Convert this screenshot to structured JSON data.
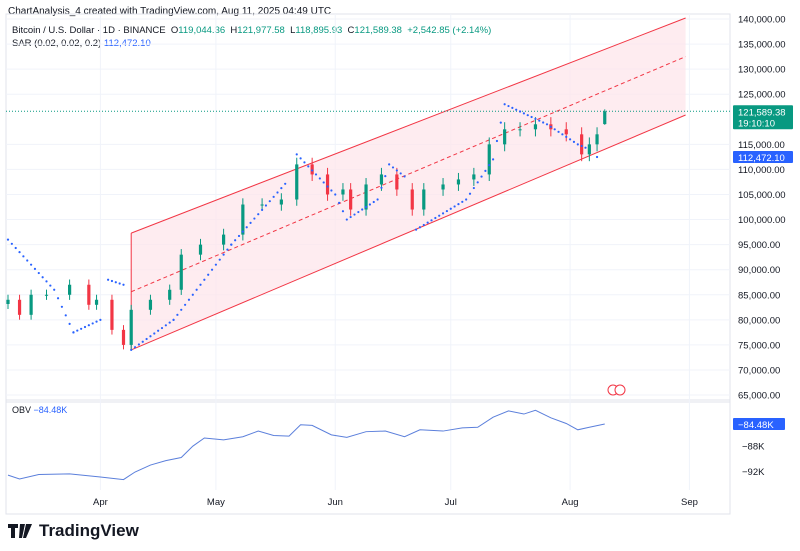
{
  "header": {
    "credit": "ChartAnalysis_4 created with TradingView.com, Aug 11, 2025 04:49 UTC",
    "symbol": "Bitcoin / U.S. Dollar · 1D · BINANCE",
    "o_label": "O",
    "open": "119,044.36",
    "h_label": "H",
    "high": "121,977.58",
    "l_label": "L",
    "low": "118,895.93",
    "c_label": "C",
    "close": "121,589.38",
    "change": "+2,542.85 (+2.14%)",
    "sar_label": "SAR (0.02, 0.02, 0.2)",
    "sar_value": "112,472.10"
  },
  "price_tag": {
    "price": "121,589.38",
    "countdown": "19:10:10",
    "sar": "112,472.10"
  },
  "obv": {
    "label": "OBV",
    "value": "−84.48K"
  },
  "brand": "TradingView",
  "colors": {
    "up": "#089981",
    "down": "#f23645",
    "sar": "#2962ff",
    "channel": "#f23645",
    "channel_fill": "#fde4ea",
    "obv": "#5b7fdb"
  },
  "chart_data": [
    {
      "type": "candlestick",
      "title": "Bitcoin / U.S. Dollar · 1D · BINANCE",
      "ylim": [
        65000,
        140000
      ],
      "y_ticks": [
        "140,000.00",
        "135,000.00",
        "130,000.00",
        "125,000.00",
        "115,000.00",
        "110,000.00",
        "105,000.00",
        "100,000.00",
        "95,000.00",
        "90,000.00",
        "85,000.00",
        "80,000.00",
        "75,000.00",
        "70,000.00",
        "65,000.00"
      ],
      "y_tick_values": [
        140000,
        135000,
        130000,
        125000,
        115000,
        110000,
        105000,
        100000,
        95000,
        90000,
        85000,
        80000,
        75000,
        70000,
        65000
      ],
      "x_ticks": [
        "Apr",
        "May",
        "Jun",
        "Jul",
        "Aug",
        "Sep"
      ],
      "x_tick_dates": [
        "2025-04-01",
        "2025-05-01",
        "2025-06-01",
        "2025-07-01",
        "2025-08-01",
        "2025-09-01"
      ],
      "closes": [
        [
          "2025-03-08",
          84000
        ],
        [
          "2025-03-11",
          81000
        ],
        [
          "2025-03-14",
          85000
        ],
        [
          "2025-03-18",
          85000
        ],
        [
          "2025-03-24",
          87000
        ],
        [
          "2025-03-29",
          83000
        ],
        [
          "2025-03-31",
          84000
        ],
        [
          "2025-04-04",
          78000
        ],
        [
          "2025-04-07",
          75000
        ],
        [
          "2025-04-09",
          82000
        ],
        [
          "2025-04-14",
          84000
        ],
        [
          "2025-04-19",
          86000
        ],
        [
          "2025-04-22",
          93000
        ],
        [
          "2025-04-27",
          95000
        ],
        [
          "2025-05-03",
          97000
        ],
        [
          "2025-05-08",
          103000
        ],
        [
          "2025-05-13",
          103000
        ],
        [
          "2025-05-18",
          104000
        ],
        [
          "2025-05-22",
          111000
        ],
        [
          "2025-05-26",
          109000
        ],
        [
          "2025-05-30",
          105000
        ],
        [
          "2025-06-03",
          106000
        ],
        [
          "2025-06-05",
          102000
        ],
        [
          "2025-06-09",
          107000
        ],
        [
          "2025-06-13",
          109000
        ],
        [
          "2025-06-17",
          106000
        ],
        [
          "2025-06-21",
          102000
        ],
        [
          "2025-06-24",
          106000
        ],
        [
          "2025-06-29",
          107000
        ],
        [
          "2025-07-03",
          108000
        ],
        [
          "2025-07-07",
          109000
        ],
        [
          "2025-07-11",
          115000
        ],
        [
          "2025-07-15",
          118000
        ],
        [
          "2025-07-19",
          118000
        ],
        [
          "2025-07-23",
          119000
        ],
        [
          "2025-07-27",
          118000
        ],
        [
          "2025-07-31",
          117000
        ],
        [
          "2025-08-04",
          113000
        ],
        [
          "2025-08-06",
          115000
        ],
        [
          "2025-08-08",
          117000
        ],
        [
          "2025-08-10",
          121589.38
        ]
      ],
      "last_candle": {
        "open": 119044.36,
        "high": 121977.58,
        "low": 118895.93,
        "close": 121589.38
      },
      "sar": [
        [
          "2025-03-08",
          96000
        ],
        [
          "2025-03-20",
          86000
        ],
        [
          "2025-03-25",
          77500
        ],
        [
          "2025-04-01",
          80000
        ],
        [
          "2025-04-03",
          88000
        ],
        [
          "2025-04-07",
          87000
        ],
        [
          "2025-04-09",
          74000
        ],
        [
          "2025-04-20",
          80000
        ],
        [
          "2025-05-05",
          95000
        ],
        [
          "2025-05-20",
          108000
        ],
        [
          "2025-05-22",
          113000
        ],
        [
          "2025-06-01",
          105000
        ],
        [
          "2025-06-04",
          100000
        ],
        [
          "2025-06-12",
          104000
        ],
        [
          "2025-06-15",
          111000
        ],
        [
          "2025-06-20",
          108000
        ],
        [
          "2025-06-22",
          98000
        ],
        [
          "2025-07-05",
          104000
        ],
        [
          "2025-07-12",
          112000
        ],
        [
          "2025-07-15",
          123000
        ],
        [
          "2025-07-26",
          119000
        ],
        [
          "2025-08-03",
          115000
        ],
        [
          "2025-08-06",
          114000
        ],
        [
          "2025-08-08",
          112472.1
        ]
      ],
      "channel": {
        "upper": [
          [
            "2025-04-09",
            97300
          ],
          [
            "2025-08-31",
            140200
          ]
        ],
        "middle": [
          [
            "2025-04-09",
            85600
          ],
          [
            "2025-08-31",
            132500
          ]
        ],
        "lower": [
          [
            "2025-04-09",
            74000
          ],
          [
            "2025-08-31",
            120850
          ]
        ]
      }
    },
    {
      "type": "line",
      "title": "OBV",
      "ylim": [
        -94,
        -81
      ],
      "y_ticks": [
        "−88K",
        "−92K"
      ],
      "y_tick_values": [
        -88,
        -92
      ],
      "series": [
        {
          "name": "OBV",
          "points": [
            [
              "2025-03-08",
              -92.6
            ],
            [
              "2025-03-11",
              -93.2
            ],
            [
              "2025-03-16",
              -92.5
            ],
            [
              "2025-03-24",
              -92.4
            ],
            [
              "2025-04-01",
              -92.9
            ],
            [
              "2025-04-07",
              -93.3
            ],
            [
              "2025-04-10",
              -92.1
            ],
            [
              "2025-04-14",
              -91.0
            ],
            [
              "2025-04-18",
              -90.3
            ],
            [
              "2025-04-22",
              -89.8
            ],
            [
              "2025-04-25",
              -88.0
            ],
            [
              "2025-04-28",
              -86.7
            ],
            [
              "2025-05-03",
              -87.0
            ],
            [
              "2025-05-08",
              -86.5
            ],
            [
              "2025-05-12",
              -85.6
            ],
            [
              "2025-05-16",
              -86.3
            ],
            [
              "2025-05-20",
              -86.4
            ],
            [
              "2025-05-23",
              -84.6
            ],
            [
              "2025-05-26",
              -84.7
            ],
            [
              "2025-05-31",
              -86.2
            ],
            [
              "2025-06-04",
              -86.6
            ],
            [
              "2025-06-09",
              -85.7
            ],
            [
              "2025-06-14",
              -85.6
            ],
            [
              "2025-06-19",
              -86.5
            ],
            [
              "2025-06-23",
              -85.4
            ],
            [
              "2025-06-29",
              -85.6
            ],
            [
              "2025-07-04",
              -85.1
            ],
            [
              "2025-07-08",
              -85.0
            ],
            [
              "2025-07-12",
              -83.4
            ],
            [
              "2025-07-16",
              -82.4
            ],
            [
              "2025-07-20",
              -82.9
            ],
            [
              "2025-07-23",
              -82.3
            ],
            [
              "2025-07-27",
              -83.5
            ],
            [
              "2025-07-31",
              -84.4
            ],
            [
              "2025-08-03",
              -85.4
            ],
            [
              "2025-08-06",
              -85.0
            ],
            [
              "2025-08-10",
              -84.48
            ]
          ]
        }
      ]
    }
  ]
}
